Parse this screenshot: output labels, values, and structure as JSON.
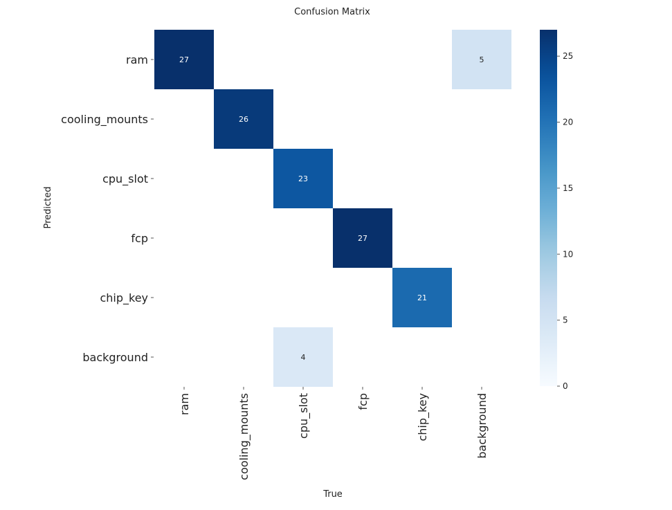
{
  "chart_data": {
    "type": "heatmap",
    "title": "Confusion Matrix",
    "xlabel": "True",
    "ylabel": "Predicted",
    "x_categories": [
      "ram",
      "cooling_mounts",
      "cpu_slot",
      "fcp",
      "chip_key",
      "background"
    ],
    "y_categories": [
      "ram",
      "cooling_mounts",
      "cpu_slot",
      "fcp",
      "chip_key",
      "background"
    ],
    "values": [
      [
        27,
        0,
        0,
        0,
        0,
        5
      ],
      [
        0,
        26,
        0,
        0,
        0,
        0
      ],
      [
        0,
        0,
        23,
        0,
        0,
        0
      ],
      [
        0,
        0,
        0,
        27,
        0,
        0
      ],
      [
        0,
        0,
        0,
        0,
        21,
        0
      ],
      [
        0,
        0,
        4,
        0,
        0,
        0
      ]
    ],
    "zero_cells_hidden": true,
    "colormap": "Blues",
    "colorbar": {
      "range": [
        0,
        27
      ],
      "ticks": [
        0,
        5,
        10,
        15,
        20,
        25
      ]
    },
    "grid": false
  }
}
